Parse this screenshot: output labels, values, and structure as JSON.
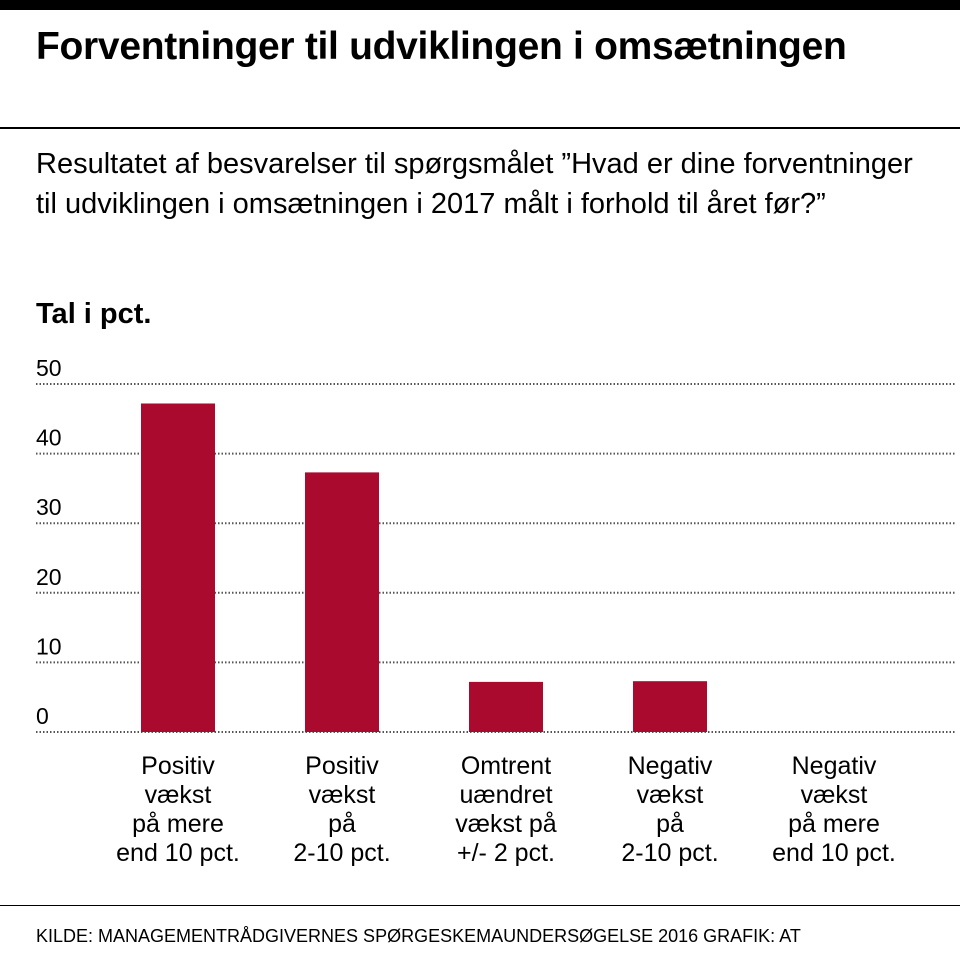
{
  "title": "Forventninger til udviklingen i omsætningen",
  "subtitle": "Resultatet af besvarelser til spørgsmålet ”Hvad er dine forventninger til udviklingen i omsætningen i 2017 målt i forhold til året før?”",
  "unit_label": "Tal i pct.",
  "footer": "KILDE: MANAGEMENTRÅDGIVERNES SPØRGESKEMAUNDERSØGELSE 2016    GRAFIK: AT",
  "colors": {
    "bar": "#a90a2e",
    "grid": "#555555"
  },
  "chart_data": {
    "type": "bar",
    "title": "Forventninger til udviklingen i omsætningen",
    "xlabel": "",
    "ylabel": "Tal i pct.",
    "ylim": [
      0,
      50
    ],
    "yticks": [
      0,
      10,
      20,
      30,
      40,
      50
    ],
    "grid": true,
    "categories": [
      "Positiv vækst på mere end 10 pct.",
      "Positiv vækst på 2-10 pct.",
      "Omtrent uændret vækst på +/- 2 pct.",
      "Negativ vækst på 2-10 pct.",
      "Negativ vækst på mere end 10 pct."
    ],
    "category_lines": [
      [
        "Positiv",
        "vækst",
        "på mere",
        "end 10 pct."
      ],
      [
        "Positiv",
        "vækst",
        "på",
        "2-10 pct."
      ],
      [
        "Omtrent",
        "uændret",
        "vækst på",
        "+/- 2 pct."
      ],
      [
        "Negativ",
        "vækst",
        "på",
        "2-10 pct."
      ],
      [
        "Negativ",
        "vækst",
        "på mere",
        "end 10 pct."
      ]
    ],
    "values": [
      47.2,
      37.3,
      7.2,
      7.3,
      0
    ]
  }
}
